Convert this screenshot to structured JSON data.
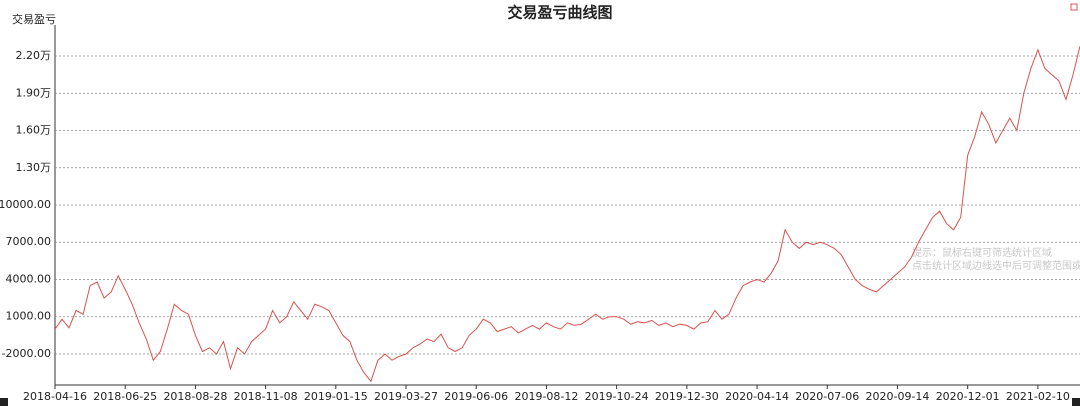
{
  "chart_data": {
    "type": "line",
    "title": "交易盈亏曲线图",
    "y_label": "交易盈亏",
    "annotations": [
      "提示：鼠标右键可筛选统计区域",
      "点击统计区域边线选中后可调整范围或拉"
    ],
    "categories": [
      "2018-04-16",
      null,
      null,
      null,
      null,
      null,
      null,
      null,
      null,
      null,
      "2018-06-25",
      null,
      null,
      null,
      null,
      null,
      null,
      null,
      null,
      null,
      "2018-08-28",
      null,
      null,
      null,
      null,
      null,
      null,
      null,
      null,
      null,
      "2018-11-08",
      null,
      null,
      null,
      null,
      null,
      null,
      null,
      null,
      null,
      "2019-01-15",
      null,
      null,
      null,
      null,
      null,
      null,
      null,
      null,
      null,
      "2019-03-27",
      null,
      null,
      null,
      null,
      null,
      null,
      null,
      null,
      null,
      "2019-06-06",
      null,
      null,
      null,
      null,
      null,
      null,
      null,
      null,
      null,
      "2019-08-12",
      null,
      null,
      null,
      null,
      null,
      null,
      null,
      null,
      null,
      "2019-10-24",
      null,
      null,
      null,
      null,
      null,
      null,
      null,
      null,
      null,
      "2019-12-30",
      null,
      null,
      null,
      null,
      null,
      null,
      null,
      null,
      null,
      "2020-04-14",
      null,
      null,
      null,
      null,
      null,
      null,
      null,
      null,
      null,
      "2020-07-06",
      null,
      null,
      null,
      null,
      null,
      null,
      null,
      null,
      null,
      "2020-09-14",
      null,
      null,
      null,
      null,
      null,
      null,
      null,
      null,
      null,
      "2020-12-01",
      null,
      null,
      null,
      null,
      null,
      null,
      null,
      null,
      null,
      "2021-02-10",
      null,
      null,
      null,
      null,
      null,
      null
    ],
    "series": [
      {
        "color": "#d9534f",
        "values": [
          0,
          800,
          100,
          1500,
          1200,
          3500,
          3800,
          2500,
          3000,
          4300,
          3200,
          2000,
          500,
          -800,
          -2500,
          -1800,
          0,
          2000,
          1500,
          1200,
          -500,
          -1800,
          -1500,
          -2000,
          -1000,
          -3200,
          -1500,
          -2000,
          -1000,
          -500,
          0,
          1500,
          500,
          1000,
          2200,
          1500,
          800,
          2000,
          1800,
          1500,
          500,
          -500,
          -1000,
          -2500,
          -3500,
          -4200,
          -2500,
          -2000,
          -2500,
          -2200,
          -2000,
          -1500,
          -1200,
          -800,
          -1000,
          -400,
          -1500,
          -1800,
          -1500,
          -500,
          0,
          800,
          500,
          -200,
          0,
          200,
          -300,
          0,
          300,
          0,
          500,
          200,
          0,
          500,
          300,
          400,
          800,
          1200,
          800,
          1000,
          1000,
          800,
          400,
          600,
          500,
          700,
          300,
          500,
          200,
          400,
          300,
          0,
          500,
          600,
          1500,
          800,
          1200,
          2500,
          3500,
          3800,
          4000,
          3800,
          4500,
          5500,
          8000,
          7000,
          6500,
          7000,
          6800,
          7000,
          6800,
          6500,
          6000,
          5000,
          4000,
          3500,
          3200,
          3000,
          3500,
          4000,
          4500,
          5000,
          5800,
          7000,
          8000,
          9000,
          9500,
          8500,
          8000,
          9000,
          14000,
          15500,
          17500,
          16500,
          15000,
          16000,
          17000,
          16000,
          19000,
          21000,
          22500,
          21000,
          20500,
          20000,
          18500,
          20500,
          22800
        ]
      }
    ],
    "ylim": [
      -4500,
      24500
    ],
    "yticks": [
      {
        "value": -2000,
        "label": "-2000.00"
      },
      {
        "value": 1000,
        "label": "1000.00"
      },
      {
        "value": 4000,
        "label": "4000.00"
      },
      {
        "value": 7000,
        "label": "7000.00"
      },
      {
        "value": 10000,
        "label": "10000.00"
      },
      {
        "value": 13000,
        "label": "1.30万"
      },
      {
        "value": 16000,
        "label": "1.60万"
      },
      {
        "value": 19000,
        "label": "1.90万"
      },
      {
        "value": 22000,
        "label": "2.20万"
      }
    ],
    "grid": true
  }
}
